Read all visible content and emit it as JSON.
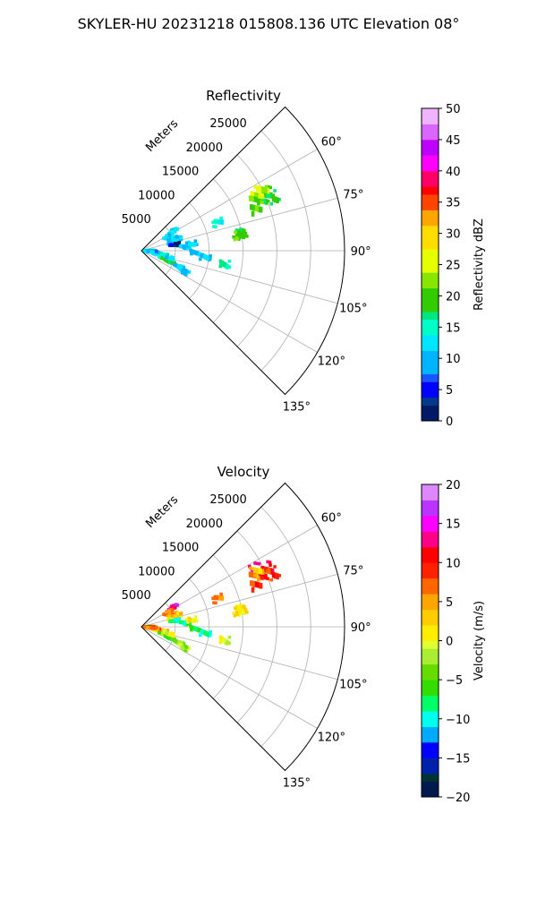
{
  "figure_title": "SKYLER-HU  20231218  015808.136 UTC Elevation 08°",
  "colors": {
    "grid": "#b0b0b0",
    "axis": "#000000"
  },
  "chart_data": [
    {
      "type": "polar-sector",
      "title": "Reflectivity",
      "range_label": "Meters",
      "theta_range_deg": [
        45,
        135
      ],
      "r_max": 30000,
      "r_ticks": [
        5000,
        10000,
        15000,
        20000,
        25000
      ],
      "r_tick_labels": [
        "5000",
        "10000",
        "15000",
        "20000",
        "25000"
      ],
      "theta_ticks": [
        60,
        75,
        90,
        105,
        120,
        135
      ],
      "theta_tick_labels": [
        "60°",
        "75°",
        "90°",
        "105°",
        "120°",
        "135°"
      ],
      "colorbar": {
        "label": "Reflectivity dBZ",
        "min": 0,
        "max": 50,
        "ticks": [
          0,
          5,
          10,
          15,
          20,
          25,
          30,
          35,
          40,
          45,
          50
        ],
        "tick_labels": [
          "0",
          "5",
          "10",
          "15",
          "20",
          "25",
          "30",
          "35",
          "40",
          "45",
          "50"
        ]
      },
      "echoes": [
        {
          "az": 65,
          "r": 20500,
          "val": 22
        },
        {
          "az": 67,
          "r": 19500,
          "val": 19
        },
        {
          "az": 64,
          "r": 19000,
          "val": 26
        },
        {
          "az": 66,
          "r": 18500,
          "val": 21
        },
        {
          "az": 68,
          "r": 21000,
          "val": 18
        },
        {
          "az": 63,
          "r": 20000,
          "val": 24
        },
        {
          "az": 70,
          "r": 18000,
          "val": 20
        },
        {
          "az": 70,
          "r": 12000,
          "val": 14
        },
        {
          "az": 80,
          "r": 15000,
          "val": 18
        },
        {
          "az": 81,
          "r": 14500,
          "val": 20
        },
        {
          "az": 58,
          "r": 5500,
          "val": 12
        },
        {
          "az": 60,
          "r": 5000,
          "val": 14
        },
        {
          "az": 62,
          "r": 4500,
          "val": 12
        },
        {
          "az": 70,
          "r": 5000,
          "val": 10
        },
        {
          "az": 72,
          "r": 5500,
          "val": 12
        },
        {
          "az": 76,
          "r": 4800,
          "val": 11
        },
        {
          "az": 80,
          "r": 5000,
          "val": 3
        },
        {
          "az": 85,
          "r": 6500,
          "val": 11
        },
        {
          "az": 82,
          "r": 7500,
          "val": 12
        },
        {
          "az": 92,
          "r": 8000,
          "val": 10
        },
        {
          "az": 96,
          "r": 9500,
          "val": 11
        },
        {
          "az": 100,
          "r": 3200,
          "val": 16
        },
        {
          "az": 103,
          "r": 2500,
          "val": 14
        },
        {
          "az": 96,
          "r": 2000,
          "val": 12
        },
        {
          "az": 88,
          "r": 1200,
          "val": 13
        },
        {
          "az": 92,
          "r": 1500,
          "val": 9
        },
        {
          "az": 98,
          "r": 1000,
          "val": 12
        },
        {
          "az": 108,
          "r": 3500,
          "val": 17
        },
        {
          "az": 111,
          "r": 4500,
          "val": 18
        },
        {
          "az": 113,
          "r": 6000,
          "val": 11
        },
        {
          "az": 116,
          "r": 7000,
          "val": 10
        },
        {
          "az": 104,
          "r": 4200,
          "val": 12
        },
        {
          "az": 99,
          "r": 12500,
          "val": 16
        }
      ]
    },
    {
      "type": "polar-sector",
      "title": "Velocity",
      "range_label": "Meters",
      "theta_range_deg": [
        45,
        135
      ],
      "r_max": 30000,
      "r_ticks": [
        5000,
        10000,
        15000,
        20000,
        25000
      ],
      "r_tick_labels": [
        "5000",
        "10000",
        "15000",
        "20000",
        "25000"
      ],
      "theta_ticks": [
        60,
        75,
        90,
        105,
        120,
        135
      ],
      "theta_tick_labels": [
        "60°",
        "75°",
        "90°",
        "105°",
        "120°",
        "135°"
      ],
      "colorbar": {
        "label": "Velocity (m/s)",
        "min": -20,
        "max": 20,
        "ticks": [
          -20,
          -15,
          -10,
          -5,
          0,
          5,
          10,
          15,
          20
        ],
        "tick_labels": [
          "−20",
          "−15",
          "−10",
          "−5",
          "0",
          "5",
          "10",
          "15",
          "20"
        ]
      },
      "echoes": [
        {
          "az": 63,
          "r": 19000,
          "val": 14
        },
        {
          "az": 65,
          "r": 20500,
          "val": 11
        },
        {
          "az": 67,
          "r": 19500,
          "val": 10
        },
        {
          "az": 66,
          "r": 18500,
          "val": 7
        },
        {
          "az": 68,
          "r": 21000,
          "val": 9
        },
        {
          "az": 64,
          "r": 19000,
          "val": 3
        },
        {
          "az": 70,
          "r": 18000,
          "val": 9
        },
        {
          "az": 70,
          "r": 12000,
          "val": 6
        },
        {
          "az": 80,
          "r": 15000,
          "val": 2
        },
        {
          "az": 81,
          "r": 14500,
          "val": 1
        },
        {
          "az": 58,
          "r": 5500,
          "val": 15
        },
        {
          "az": 60,
          "r": 5000,
          "val": 13
        },
        {
          "az": 62,
          "r": 4500,
          "val": 6
        },
        {
          "az": 70,
          "r": 5000,
          "val": 5
        },
        {
          "az": 72,
          "r": 5500,
          "val": 3
        },
        {
          "az": 76,
          "r": 4800,
          "val": 2
        },
        {
          "az": 80,
          "r": 5000,
          "val": -9
        },
        {
          "az": 85,
          "r": 6500,
          "val": -8
        },
        {
          "az": 82,
          "r": 7500,
          "val": 1
        },
        {
          "az": 92,
          "r": 8000,
          "val": -7
        },
        {
          "az": 96,
          "r": 9500,
          "val": -9
        },
        {
          "az": 100,
          "r": 3200,
          "val": 3
        },
        {
          "az": 103,
          "r": 2500,
          "val": 2
        },
        {
          "az": 96,
          "r": 2000,
          "val": 7
        },
        {
          "az": 88,
          "r": 1200,
          "val": -5
        },
        {
          "az": 92,
          "r": 1500,
          "val": 9
        },
        {
          "az": 98,
          "r": 1000,
          "val": 6
        },
        {
          "az": 108,
          "r": 3500,
          "val": -4
        },
        {
          "az": 111,
          "r": 4500,
          "val": -6
        },
        {
          "az": 113,
          "r": 6000,
          "val": -3
        },
        {
          "az": 116,
          "r": 7000,
          "val": -2
        },
        {
          "az": 104,
          "r": 4200,
          "val": 0
        },
        {
          "az": 99,
          "r": 12500,
          "val": -1
        }
      ]
    }
  ]
}
